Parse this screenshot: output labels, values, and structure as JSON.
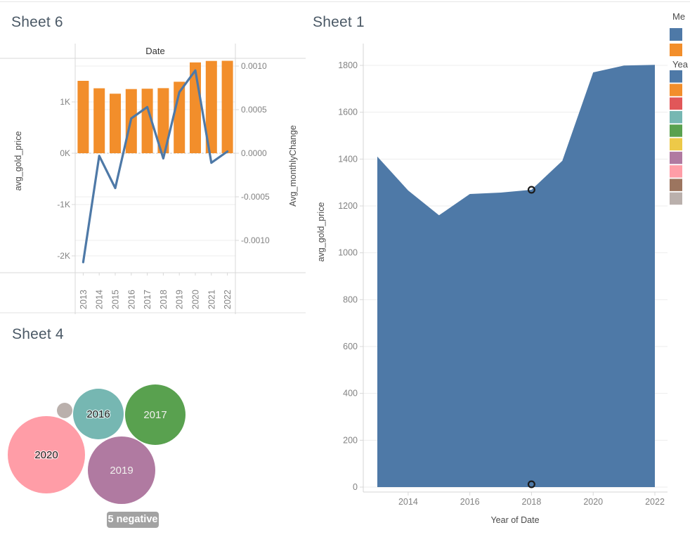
{
  "colors": {
    "bar_orange": "#f28e2b",
    "line_blue": "#4e79a7",
    "area_blue": "#4e79a7",
    "badge_gray": "#a2a2a2",
    "marker_ring": "#1b1b1b"
  },
  "legend": {
    "measure_header": "Me",
    "measure_swatches": [
      "#4e79a7",
      "#f28e2b"
    ],
    "year_header": "Yea",
    "year_swatches": [
      "#4e79a7",
      "#f28e2b",
      "#e15759",
      "#76b7b2",
      "#59a14f",
      "#edc948",
      "#b07aa1",
      "#ff9da7",
      "#9c755f",
      "#bab0ac"
    ]
  },
  "chart_data": [
    {
      "id": "sheet6",
      "type": "bar",
      "title": "Sheet 6",
      "column_header": "Date",
      "categories": [
        "2013",
        "2014",
        "2015",
        "2016",
        "2017",
        "2018",
        "2019",
        "2020",
        "2021",
        "2022"
      ],
      "series": [
        {
          "name": "avg_gold_price",
          "mark": "bar",
          "axis": "left",
          "values": [
            1411,
            1266,
            1160,
            1251,
            1257,
            1269,
            1393,
            1770,
            1799,
            1802
          ]
        },
        {
          "name": "Avg_monthlyChange",
          "mark": "line",
          "axis": "right",
          "values": [
            -0.00125,
            -3e-05,
            -0.0004,
            0.0004,
            0.00053,
            -6e-05,
            0.0007,
            0.00095,
            -0.00011,
            2e-05
          ]
        }
      ],
      "left_axis": {
        "title": "avg_gold_price",
        "ticks": [
          1000,
          0,
          -1000,
          -2000
        ],
        "tick_labels": [
          "1K",
          "0K",
          "-1K",
          "-2K"
        ],
        "range": [
          -2350,
          1870
        ]
      },
      "right_axis": {
        "title": "Avg_monthlyChange",
        "ticks": [
          0.001,
          0.0005,
          0,
          -0.0005,
          -0.001
        ],
        "tick_labels": [
          "0.0010",
          "0.0005",
          "0.0000",
          "-0.0005",
          "-0.0010"
        ],
        "range": [
          -0.00136,
          0.00108
        ]
      },
      "grid": true,
      "zero_line": "dashed"
    },
    {
      "id": "sheet1",
      "type": "area",
      "title": "Sheet 1",
      "x": [
        2013,
        2014,
        2015,
        2016,
        2017,
        2018,
        2019,
        2020,
        2021,
        2022
      ],
      "series": [
        {
          "name": "avg_gold_price",
          "values": [
            1411,
            1266,
            1160,
            1251,
            1257,
            1269,
            1393,
            1770,
            1799,
            1802
          ]
        }
      ],
      "xlabel": "Year of Date",
      "ylabel": "avg_gold_price",
      "ylim": [
        0,
        1800
      ],
      "yticks": [
        0,
        200,
        400,
        600,
        800,
        1000,
        1200,
        1400,
        1600,
        1800
      ],
      "ytick_labels": [
        "0",
        "200",
        "400",
        "600",
        "800",
        "1000",
        "1200",
        "1400",
        "1600",
        "1800"
      ],
      "xticks": [
        2014,
        2016,
        2018,
        2020,
        2022
      ],
      "xtick_labels": [
        "2014",
        "2016",
        "2018",
        "2020",
        "2022"
      ],
      "grid": true,
      "markers": [
        {
          "x": 2018,
          "value": 1269,
          "style": "open-circle"
        },
        {
          "x": 2018,
          "value": 12,
          "style": "open-circle"
        }
      ]
    },
    {
      "id": "sheet4",
      "type": "bubble",
      "title": "Sheet 4",
      "bubbles": [
        {
          "label": "",
          "year": "",
          "color": "#bab0ac",
          "cx": 92,
          "cy": 137,
          "r": 11,
          "label_color": "#1e1e1e"
        },
        {
          "label": "2016",
          "color": "#76b7b2",
          "cx": 140,
          "cy": 142,
          "r": 36,
          "label_color": "#1e1e1e"
        },
        {
          "label": "2017",
          "color": "#59a14f",
          "cx": 221,
          "cy": 143,
          "r": 43,
          "label_color": "#f0efed"
        },
        {
          "label": "2020",
          "color": "#ff9da7",
          "cx": 66,
          "cy": 200,
          "r": 55,
          "label_color": "#1e1e1e"
        },
        {
          "label": "2019",
          "color": "#b07aa1",
          "cx": 173,
          "cy": 222,
          "r": 48,
          "label_color": "#f0efed"
        }
      ],
      "annotation": {
        "text": "5 negative"
      }
    }
  ]
}
